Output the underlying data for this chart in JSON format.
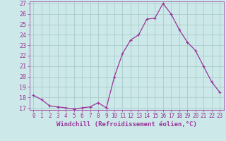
{
  "x": [
    0,
    1,
    2,
    3,
    4,
    5,
    6,
    7,
    8,
    9,
    10,
    11,
    12,
    13,
    14,
    15,
    16,
    17,
    18,
    19,
    20,
    21,
    22,
    23
  ],
  "y": [
    18.2,
    17.8,
    17.2,
    17.1,
    17.0,
    16.9,
    17.0,
    17.1,
    17.5,
    17.0,
    20.0,
    22.2,
    23.5,
    24.0,
    25.5,
    25.6,
    27.0,
    26.0,
    24.5,
    23.3,
    22.5,
    21.0,
    19.5,
    18.5
  ],
  "line_color": "#993399",
  "marker": "+",
  "bg_color": "#cce8e8",
  "grid_color": "#aacccc",
  "xlabel": "Windchill (Refroidissement éolien,°C)",
  "ylim": [
    17,
    27
  ],
  "xlim": [
    -0.5,
    23.5
  ],
  "yticks": [
    17,
    18,
    19,
    20,
    21,
    22,
    23,
    24,
    25,
    26,
    27
  ],
  "xticks": [
    0,
    1,
    2,
    3,
    4,
    5,
    6,
    7,
    8,
    9,
    10,
    11,
    12,
    13,
    14,
    15,
    16,
    17,
    18,
    19,
    20,
    21,
    22,
    23
  ],
  "title_color": "#993399",
  "axis_color": "#993399",
  "tick_color": "#993399",
  "label_fontsize": 6.5,
  "tick_fontsize": 5.5,
  "linewidth": 0.9,
  "markersize": 3.0
}
